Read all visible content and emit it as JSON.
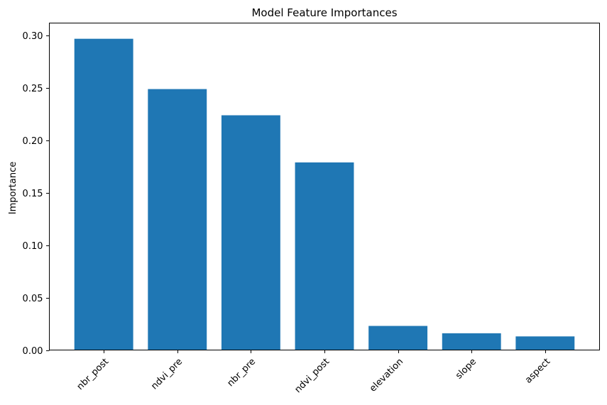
{
  "chart_data": {
    "type": "bar",
    "title": "Model Feature Importances",
    "xlabel": "",
    "ylabel": "Importance",
    "categories": [
      "nbr_post",
      "ndvi_pre",
      "nbr_pre",
      "ndvi_post",
      "elevation",
      "slope",
      "aspect"
    ],
    "values": [
      0.297,
      0.249,
      0.224,
      0.179,
      0.023,
      0.016,
      0.013
    ],
    "ylim": [
      0,
      0.312
    ],
    "yticks": [
      "0.00",
      "0.05",
      "0.10",
      "0.15",
      "0.20",
      "0.25",
      "0.30"
    ],
    "ytick_values": [
      0,
      0.05,
      0.1,
      0.15,
      0.2,
      0.25,
      0.3
    ],
    "bar_color": "#1f77b4",
    "grid": false,
    "legend": "none"
  }
}
